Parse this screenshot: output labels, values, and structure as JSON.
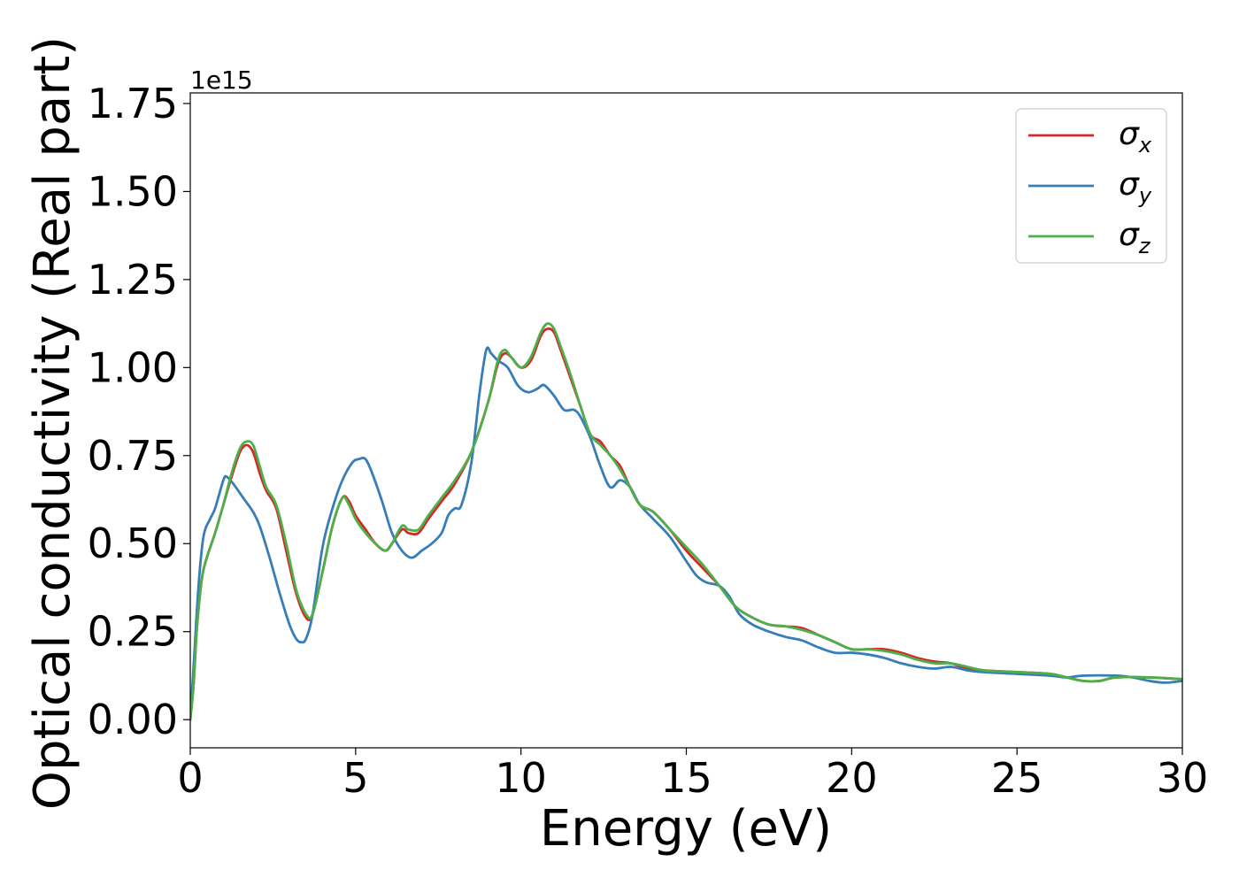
{
  "chart_data": {
    "type": "line",
    "xlabel": "Energy (eV)",
    "ylabel": "Optical conductivity (Real part)",
    "y_offset_text": "1e15",
    "xlim": [
      0,
      30
    ],
    "ylim": [
      -0.08,
      1.78
    ],
    "x_ticks": [
      0,
      5,
      10,
      15,
      20,
      25,
      30
    ],
    "x_tick_labels": [
      "0",
      "5",
      "10",
      "15",
      "20",
      "25",
      "30"
    ],
    "y_ticks": [
      0.0,
      0.25,
      0.5,
      0.75,
      1.0,
      1.25,
      1.5,
      1.75
    ],
    "y_tick_labels": [
      "0.00",
      "0.25",
      "0.50",
      "0.75",
      "1.00",
      "1.25",
      "1.50",
      "1.75"
    ],
    "grid": false,
    "legend_position": "top-right",
    "series": [
      {
        "name": "σ",
        "subscript": "x",
        "color": "#d62728",
        "points": [
          [
            0,
            0.0
          ],
          [
            0.1,
            0.1
          ],
          [
            0.2,
            0.26
          ],
          [
            0.35,
            0.4
          ],
          [
            0.5,
            0.46
          ],
          [
            0.75,
            0.53
          ],
          [
            1.0,
            0.61
          ],
          [
            1.25,
            0.69
          ],
          [
            1.5,
            0.76
          ],
          [
            1.7,
            0.78
          ],
          [
            1.9,
            0.76
          ],
          [
            2.1,
            0.7
          ],
          [
            2.3,
            0.65
          ],
          [
            2.6,
            0.6
          ],
          [
            2.9,
            0.48
          ],
          [
            3.2,
            0.36
          ],
          [
            3.5,
            0.29
          ],
          [
            3.7,
            0.3
          ],
          [
            4.0,
            0.42
          ],
          [
            4.3,
            0.55
          ],
          [
            4.6,
            0.63
          ],
          [
            4.8,
            0.62
          ],
          [
            5.0,
            0.58
          ],
          [
            5.3,
            0.54
          ],
          [
            5.6,
            0.5
          ],
          [
            5.9,
            0.48
          ],
          [
            6.1,
            0.5
          ],
          [
            6.4,
            0.54
          ],
          [
            6.6,
            0.53
          ],
          [
            6.9,
            0.53
          ],
          [
            7.2,
            0.57
          ],
          [
            7.6,
            0.62
          ],
          [
            8.0,
            0.67
          ],
          [
            8.5,
            0.76
          ],
          [
            9.0,
            0.9
          ],
          [
            9.3,
            1.01
          ],
          [
            9.5,
            1.04
          ],
          [
            9.7,
            1.03
          ],
          [
            10.0,
            1.0
          ],
          [
            10.3,
            1.02
          ],
          [
            10.6,
            1.09
          ],
          [
            10.8,
            1.11
          ],
          [
            11.0,
            1.1
          ],
          [
            11.2,
            1.05
          ],
          [
            11.5,
            0.97
          ],
          [
            11.8,
            0.89
          ],
          [
            12.1,
            0.81
          ],
          [
            12.4,
            0.79
          ],
          [
            12.7,
            0.75
          ],
          [
            13.0,
            0.72
          ],
          [
            13.3,
            0.66
          ],
          [
            13.6,
            0.61
          ],
          [
            14.0,
            0.59
          ],
          [
            14.5,
            0.54
          ],
          [
            15.0,
            0.48
          ],
          [
            15.5,
            0.43
          ],
          [
            16.0,
            0.38
          ],
          [
            16.5,
            0.32
          ],
          [
            17.0,
            0.29
          ],
          [
            17.5,
            0.27
          ],
          [
            18.0,
            0.265
          ],
          [
            18.5,
            0.26
          ],
          [
            19.0,
            0.24
          ],
          [
            19.5,
            0.22
          ],
          [
            20.0,
            0.2
          ],
          [
            20.5,
            0.2
          ],
          [
            21.0,
            0.2
          ],
          [
            21.5,
            0.19
          ],
          [
            22.0,
            0.175
          ],
          [
            22.5,
            0.165
          ],
          [
            23.0,
            0.16
          ],
          [
            23.5,
            0.145
          ],
          [
            24.0,
            0.14
          ],
          [
            25.0,
            0.135
          ],
          [
            26.0,
            0.13
          ],
          [
            26.5,
            0.12
          ],
          [
            27.0,
            0.11
          ],
          [
            27.5,
            0.11
          ],
          [
            28.0,
            0.12
          ],
          [
            29.0,
            0.12
          ],
          [
            30.0,
            0.115
          ]
        ]
      },
      {
        "name": "σ",
        "subscript": "y",
        "color": "#377eb8",
        "points": [
          [
            0,
            0.0
          ],
          [
            0.1,
            0.15
          ],
          [
            0.25,
            0.38
          ],
          [
            0.4,
            0.52
          ],
          [
            0.6,
            0.57
          ],
          [
            0.75,
            0.6
          ],
          [
            1.0,
            0.68
          ],
          [
            1.1,
            0.69
          ],
          [
            1.3,
            0.67
          ],
          [
            1.6,
            0.63
          ],
          [
            1.9,
            0.59
          ],
          [
            2.1,
            0.55
          ],
          [
            2.4,
            0.46
          ],
          [
            2.7,
            0.36
          ],
          [
            3.0,
            0.27
          ],
          [
            3.2,
            0.23
          ],
          [
            3.35,
            0.22
          ],
          [
            3.5,
            0.23
          ],
          [
            3.7,
            0.3
          ],
          [
            4.0,
            0.49
          ],
          [
            4.3,
            0.6
          ],
          [
            4.6,
            0.68
          ],
          [
            4.9,
            0.73
          ],
          [
            5.1,
            0.74
          ],
          [
            5.3,
            0.74
          ],
          [
            5.5,
            0.7
          ],
          [
            5.8,
            0.62
          ],
          [
            6.1,
            0.53
          ],
          [
            6.4,
            0.48
          ],
          [
            6.7,
            0.46
          ],
          [
            7.0,
            0.48
          ],
          [
            7.3,
            0.5
          ],
          [
            7.6,
            0.53
          ],
          [
            7.8,
            0.58
          ],
          [
            8.0,
            0.6
          ],
          [
            8.2,
            0.61
          ],
          [
            8.5,
            0.73
          ],
          [
            8.75,
            0.93
          ],
          [
            8.95,
            1.05
          ],
          [
            9.1,
            1.04
          ],
          [
            9.3,
            1.02
          ],
          [
            9.6,
            1.0
          ],
          [
            9.9,
            0.95
          ],
          [
            10.2,
            0.93
          ],
          [
            10.5,
            0.94
          ],
          [
            10.7,
            0.95
          ],
          [
            11.0,
            0.92
          ],
          [
            11.3,
            0.88
          ],
          [
            11.6,
            0.88
          ],
          [
            11.8,
            0.86
          ],
          [
            12.1,
            0.8
          ],
          [
            12.4,
            0.72
          ],
          [
            12.7,
            0.66
          ],
          [
            13.0,
            0.68
          ],
          [
            13.3,
            0.66
          ],
          [
            13.6,
            0.61
          ],
          [
            14.0,
            0.57
          ],
          [
            14.5,
            0.52
          ],
          [
            15.0,
            0.45
          ],
          [
            15.3,
            0.41
          ],
          [
            15.6,
            0.39
          ],
          [
            16.0,
            0.38
          ],
          [
            16.3,
            0.35
          ],
          [
            16.6,
            0.3
          ],
          [
            17.0,
            0.27
          ],
          [
            17.5,
            0.25
          ],
          [
            18.0,
            0.235
          ],
          [
            18.5,
            0.225
          ],
          [
            19.0,
            0.205
          ],
          [
            19.5,
            0.19
          ],
          [
            20.0,
            0.19
          ],
          [
            20.5,
            0.185
          ],
          [
            21.0,
            0.175
          ],
          [
            21.5,
            0.16
          ],
          [
            22.0,
            0.15
          ],
          [
            22.5,
            0.145
          ],
          [
            23.0,
            0.15
          ],
          [
            23.5,
            0.14
          ],
          [
            24.0,
            0.135
          ],
          [
            25.0,
            0.13
          ],
          [
            26.0,
            0.125
          ],
          [
            26.5,
            0.12
          ],
          [
            27.0,
            0.125
          ],
          [
            28.0,
            0.125
          ],
          [
            28.5,
            0.12
          ],
          [
            29.0,
            0.11
          ],
          [
            29.5,
            0.105
          ],
          [
            30.0,
            0.11
          ]
        ]
      },
      {
        "name": "σ",
        "subscript": "z",
        "color": "#4daf4a",
        "points": [
          [
            0,
            0.0
          ],
          [
            0.1,
            0.1
          ],
          [
            0.2,
            0.26
          ],
          [
            0.35,
            0.4
          ],
          [
            0.5,
            0.46
          ],
          [
            0.75,
            0.53
          ],
          [
            1.0,
            0.61
          ],
          [
            1.25,
            0.7
          ],
          [
            1.5,
            0.77
          ],
          [
            1.7,
            0.79
          ],
          [
            1.9,
            0.78
          ],
          [
            2.1,
            0.72
          ],
          [
            2.3,
            0.66
          ],
          [
            2.6,
            0.61
          ],
          [
            2.9,
            0.5
          ],
          [
            3.2,
            0.37
          ],
          [
            3.5,
            0.3
          ],
          [
            3.7,
            0.3
          ],
          [
            4.0,
            0.42
          ],
          [
            4.3,
            0.55
          ],
          [
            4.6,
            0.63
          ],
          [
            4.8,
            0.61
          ],
          [
            5.0,
            0.57
          ],
          [
            5.3,
            0.53
          ],
          [
            5.6,
            0.5
          ],
          [
            5.9,
            0.48
          ],
          [
            6.1,
            0.5
          ],
          [
            6.4,
            0.55
          ],
          [
            6.6,
            0.54
          ],
          [
            6.9,
            0.54
          ],
          [
            7.2,
            0.58
          ],
          [
            7.6,
            0.63
          ],
          [
            8.0,
            0.68
          ],
          [
            8.5,
            0.76
          ],
          [
            9.0,
            0.9
          ],
          [
            9.3,
            1.02
          ],
          [
            9.5,
            1.05
          ],
          [
            9.7,
            1.03
          ],
          [
            10.0,
            1.0
          ],
          [
            10.3,
            1.03
          ],
          [
            10.6,
            1.1
          ],
          [
            10.8,
            1.125
          ],
          [
            11.0,
            1.11
          ],
          [
            11.2,
            1.06
          ],
          [
            11.5,
            0.98
          ],
          [
            11.8,
            0.89
          ],
          [
            12.1,
            0.81
          ],
          [
            12.4,
            0.78
          ],
          [
            12.7,
            0.75
          ],
          [
            13.0,
            0.71
          ],
          [
            13.3,
            0.66
          ],
          [
            13.6,
            0.61
          ],
          [
            14.0,
            0.59
          ],
          [
            14.5,
            0.54
          ],
          [
            15.0,
            0.49
          ],
          [
            15.5,
            0.44
          ],
          [
            16.0,
            0.38
          ],
          [
            16.5,
            0.32
          ],
          [
            17.0,
            0.29
          ],
          [
            17.5,
            0.27
          ],
          [
            18.0,
            0.265
          ],
          [
            18.5,
            0.255
          ],
          [
            19.0,
            0.24
          ],
          [
            19.5,
            0.22
          ],
          [
            20.0,
            0.2
          ],
          [
            20.5,
            0.2
          ],
          [
            21.0,
            0.195
          ],
          [
            21.5,
            0.185
          ],
          [
            22.0,
            0.17
          ],
          [
            22.5,
            0.16
          ],
          [
            23.0,
            0.16
          ],
          [
            23.5,
            0.15
          ],
          [
            24.0,
            0.14
          ],
          [
            25.0,
            0.135
          ],
          [
            26.0,
            0.13
          ],
          [
            26.5,
            0.12
          ],
          [
            27.0,
            0.11
          ],
          [
            27.5,
            0.11
          ],
          [
            28.0,
            0.12
          ],
          [
            29.0,
            0.12
          ],
          [
            30.0,
            0.115
          ]
        ]
      }
    ]
  }
}
